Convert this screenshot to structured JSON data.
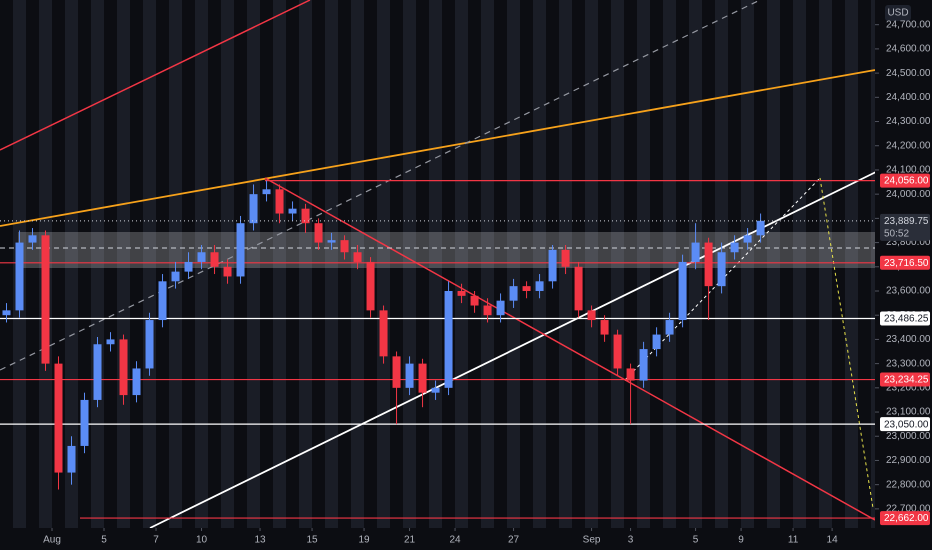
{
  "chart_data": {
    "type": "candlestick",
    "currency": "USD",
    "up_color": "#5b8cf5",
    "down_color": "#f23645",
    "xlim": [
      0,
      67.3
    ],
    "xticks": [
      {
        "value": 4,
        "label": "Aug"
      },
      {
        "value": 8,
        "label": "5"
      },
      {
        "value": 12,
        "label": "7"
      },
      {
        "value": 15.5,
        "label": "10"
      },
      {
        "value": 20,
        "label": "13"
      },
      {
        "value": 24,
        "label": "15"
      },
      {
        "value": 28,
        "label": "19"
      },
      {
        "value": 31.5,
        "label": "21"
      },
      {
        "value": 35,
        "label": "24"
      },
      {
        "value": 39.5,
        "label": "27"
      },
      {
        "value": 45.5,
        "label": "Sep"
      },
      {
        "value": 48.5,
        "label": "3"
      },
      {
        "value": 53.5,
        "label": "5"
      },
      {
        "value": 57,
        "label": "9"
      },
      {
        "value": 61,
        "label": "11"
      },
      {
        "value": 64,
        "label": "14"
      }
    ],
    "ylim": [
      22621,
      24802
    ],
    "yticks": [
      {
        "value": 22700,
        "label": "22,700.00"
      },
      {
        "value": 22800,
        "label": "22,800.00"
      },
      {
        "value": 22900,
        "label": "22,900.00"
      },
      {
        "value": 23000,
        "label": "23,000.00"
      },
      {
        "value": 23100,
        "label": "23,100.00"
      },
      {
        "value": 23200,
        "label": "23,200.00"
      },
      {
        "value": 23300,
        "label": "23,300.00"
      },
      {
        "value": 23400,
        "label": "23,400.00"
      },
      {
        "value": 23500,
        "label": "23,500.00"
      },
      {
        "value": 23600,
        "label": "23,600.00"
      },
      {
        "value": 23700,
        "label": "23,700.00"
      },
      {
        "value": 23800,
        "label": "23,800.00"
      },
      {
        "value": 23900,
        "label": "23,900.00"
      },
      {
        "value": 24000,
        "label": "24,000.00"
      },
      {
        "value": 24100,
        "label": "24,100.00"
      },
      {
        "value": 24200,
        "label": "24,200.00"
      },
      {
        "value": 24300,
        "label": "24,300.00"
      },
      {
        "value": 24400,
        "label": "24,400.00"
      },
      {
        "value": 24500,
        "label": "24,500.00"
      },
      {
        "value": 24600,
        "label": "24,600.00"
      },
      {
        "value": 24700,
        "label": "24,700.00"
      }
    ],
    "open": [
      23500,
      23520,
      23800,
      23830,
      23300,
      22850,
      22960,
      23150,
      23380,
      23400,
      23170,
      23280,
      23480,
      23640,
      23680,
      23720,
      23760,
      23700,
      23660,
      23880,
      24000,
      24020,
      23920,
      23940,
      23880,
      23800,
      23810,
      23760,
      23720,
      23520,
      23330,
      23200,
      23300,
      23180,
      23200,
      23600,
      23580,
      23540,
      23500,
      23560,
      23620,
      23600,
      23640,
      23770,
      23700,
      23520,
      23480,
      23420,
      23280,
      23230,
      23360,
      23420,
      23480,
      23720,
      23800,
      23620,
      23760,
      23800,
      23830
    ],
    "high": [
      23550,
      23850,
      23860,
      23850,
      23330,
      23000,
      23180,
      23410,
      23430,
      23420,
      23310,
      23510,
      23670,
      23720,
      23760,
      23790,
      23790,
      23730,
      23910,
      24040,
      24056,
      24040,
      23970,
      23960,
      23900,
      23840,
      23830,
      23790,
      23740,
      23540,
      23350,
      23330,
      23320,
      23230,
      23640,
      23630,
      23600,
      23570,
      23590,
      23650,
      23640,
      23670,
      23790,
      23790,
      23720,
      23540,
      23500,
      23440,
      23300,
      23390,
      23450,
      23510,
      23750,
      23880,
      23820,
      23800,
      23830,
      23860,
      23920
    ],
    "low": [
      23470,
      23490,
      23770,
      23270,
      22780,
      22800,
      22930,
      23120,
      23350,
      23130,
      23140,
      23250,
      23450,
      23610,
      23650,
      23690,
      23670,
      23630,
      23630,
      23850,
      23970,
      23880,
      23890,
      23840,
      23770,
      23770,
      23730,
      23690,
      23490,
      23300,
      23050,
      23170,
      23120,
      23150,
      23170,
      23550,
      23510,
      23470,
      23470,
      23530,
      23570,
      23570,
      23610,
      23670,
      23490,
      23450,
      23390,
      23250,
      23050,
      23200,
      23330,
      23390,
      23450,
      23690,
      23480,
      23590,
      23730,
      23770,
      23800
    ],
    "close": [
      23520,
      23800,
      23830,
      23300,
      22850,
      22960,
      23150,
      23380,
      23400,
      23170,
      23280,
      23480,
      23640,
      23680,
      23720,
      23760,
      23700,
      23660,
      23880,
      24000,
      24020,
      23920,
      23940,
      23880,
      23800,
      23810,
      23760,
      23720,
      23520,
      23330,
      23200,
      23300,
      23180,
      23200,
      23600,
      23580,
      23540,
      23500,
      23560,
      23620,
      23600,
      23640,
      23770,
      23700,
      23520,
      23480,
      23420,
      23280,
      23230,
      23360,
      23420,
      23480,
      23720,
      23800,
      23620,
      23760,
      23800,
      23830,
      23890
    ],
    "levels": [
      {
        "value": 24056,
        "label": "24,056.00",
        "color": "#f23645"
      },
      {
        "value": 23716.5,
        "label": "23,716.50",
        "color": "#f23645"
      },
      {
        "value": 23486.25,
        "label": "23,486.25",
        "color": "#ffffff"
      },
      {
        "value": 23234.25,
        "label": "23,234.25",
        "color": "#f23645"
      },
      {
        "value": 23050,
        "label": "23,050.00",
        "color": "#ffffff"
      },
      {
        "value": 22662,
        "label": "22,662.00",
        "color": "#f23645"
      }
    ],
    "current_price": {
      "value": 23889.75,
      "label": "23,889.75",
      "countdown": "50:52"
    }
  }
}
